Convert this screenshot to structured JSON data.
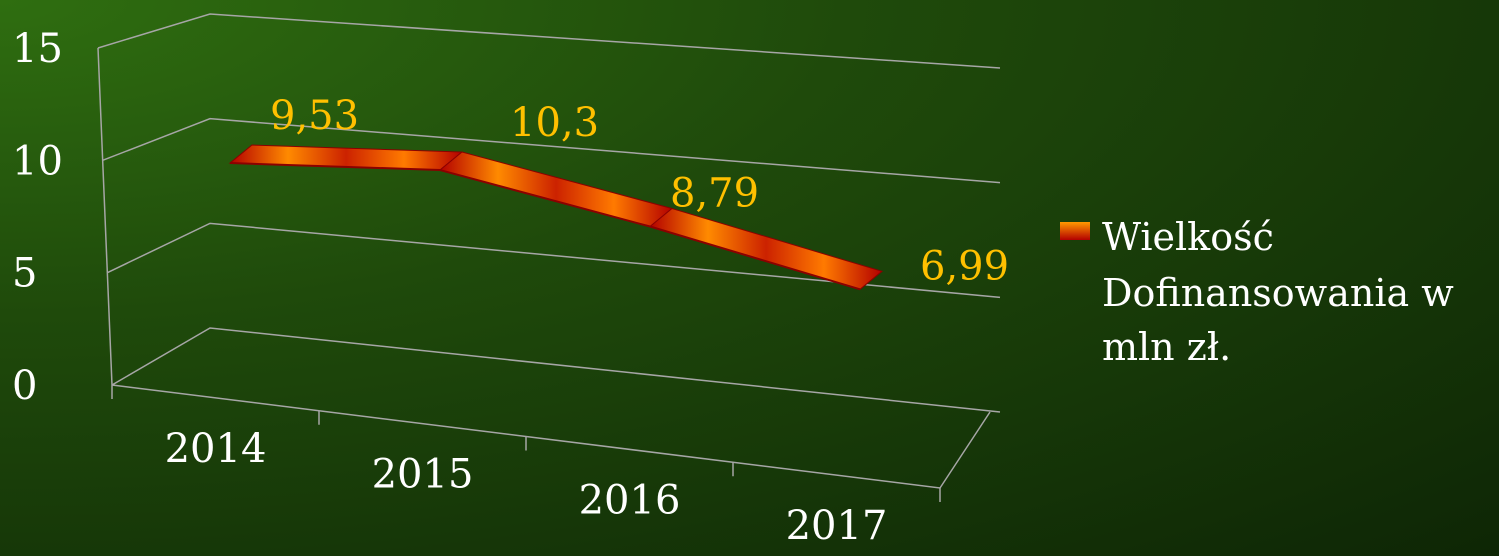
{
  "colors": {
    "axis": "#a6a6a6",
    "data_label": "#ffc000",
    "tick_label": "#ffffff",
    "series_light": "#ff8a00",
    "series_mid": "#cc3300",
    "series_dark": "#8b0000"
  },
  "chart_data": {
    "type": "line",
    "style": "3d-ribbon",
    "categories": [
      "2014",
      "2015",
      "2016",
      "2017"
    ],
    "series": [
      {
        "name": "Wielkość Dofinansowania w mln zł.",
        "values": [
          9.53,
          10.3,
          8.79,
          6.99
        ]
      }
    ],
    "data_labels": [
      "9,53",
      "10,3",
      "8,79",
      "6,99"
    ],
    "y_ticks": [
      "0",
      "5",
      "10",
      "15"
    ],
    "ylim": [
      0,
      15
    ],
    "grid": true,
    "legend": {
      "position": "right",
      "lines": [
        "Wielkość",
        "Dofinansowania w",
        "mln zł."
      ]
    },
    "title": "",
    "xlabel": "",
    "ylabel": ""
  }
}
